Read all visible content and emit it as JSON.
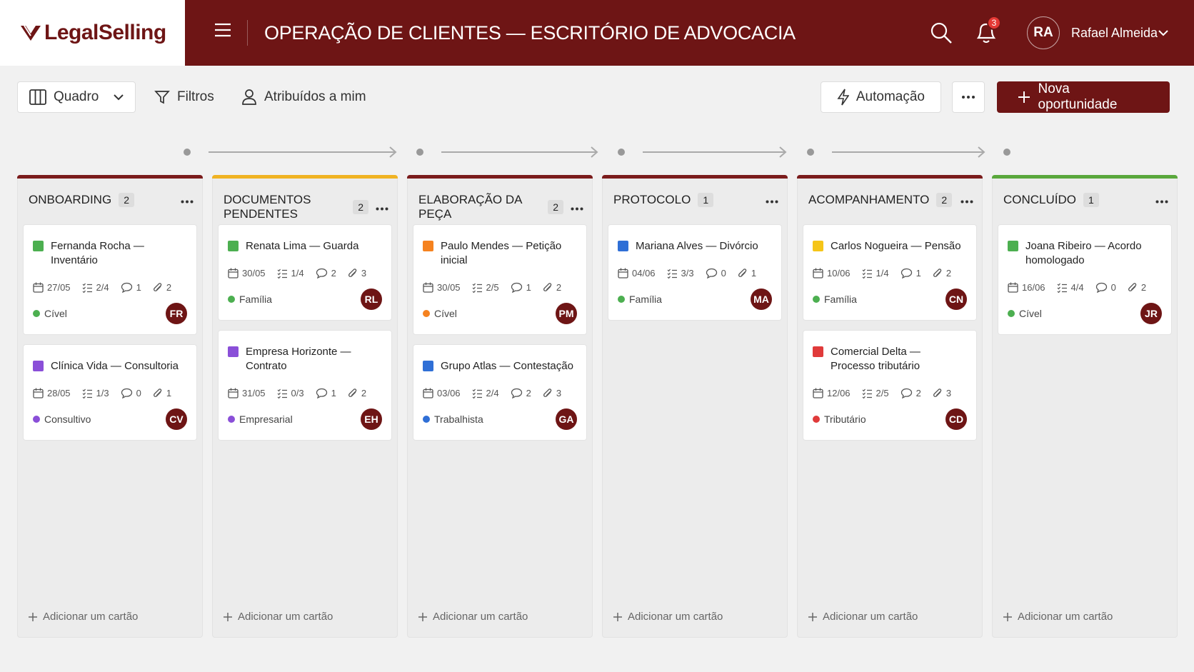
{
  "header": {
    "brand": "LegalSelling",
    "title": "OPERAÇÃO DE CLIENTES — ESCRITÓRIO DE ADVOCACIA",
    "notifications": 3,
    "user_initials": "RA",
    "user_name": "Rafael Almeida"
  },
  "toolbar": {
    "view": "Quadro",
    "filters": "Filtros",
    "assigned": "Atribuídos a mim",
    "automation": "Automação",
    "new_button": "Nova oportunidade"
  },
  "add_card": "Adicionar um cartão",
  "columns": [
    {
      "title": "ONBOARDING",
      "count": 2,
      "color": "#7b1c1c",
      "cards": [
        {
          "title": "Fernanda Rocha — Inventário",
          "color": "#4caf50",
          "date": "27/05",
          "checklist": "2/4",
          "comments": 1,
          "attachments": 2,
          "tag": "Cível",
          "tag_color": "#4caf50",
          "initials": "FR"
        },
        {
          "title": "Clínica Vida — Consultoria",
          "color": "#8a4fd8",
          "date": "28/05",
          "checklist": "1/3",
          "comments": 0,
          "attachments": 1,
          "tag": "Consultivo",
          "tag_color": "#8a4fd8",
          "initials": "CV"
        }
      ]
    },
    {
      "title": "DOCUMENTOS PENDENTES",
      "count": 2,
      "color": "#f0b323",
      "cards": [
        {
          "title": "Renata Lima — Guarda",
          "color": "#4caf50",
          "date": "30/05",
          "checklist": "1/4",
          "comments": 2,
          "attachments": 3,
          "tag": "Família",
          "tag_color": "#4caf50",
          "initials": "RL"
        },
        {
          "title": "Empresa Horizonte — Contrato",
          "color": "#8a4fd8",
          "date": "31/05",
          "checklist": "0/3",
          "comments": 1,
          "attachments": 2,
          "tag": "Empresarial",
          "tag_color": "#8a4fd8",
          "initials": "EH"
        }
      ]
    },
    {
      "title": "ELABORAÇÃO DA PEÇA",
      "count": 2,
      "color": "#7b1c1c",
      "cards": [
        {
          "title": "Paulo Mendes — Petição inicial",
          "color": "#f5821f",
          "date": "30/05",
          "checklist": "2/5",
          "comments": 1,
          "attachments": 2,
          "tag": "Cível",
          "tag_color": "#f5821f",
          "initials": "PM"
        },
        {
          "title": "Grupo Atlas — Contestação",
          "color": "#2f6fd6",
          "date": "03/06",
          "checklist": "2/4",
          "comments": 2,
          "attachments": 3,
          "tag": "Trabalhista",
          "tag_color": "#2f6fd6",
          "initials": "GA"
        }
      ]
    },
    {
      "title": "PROTOCOLO",
      "count": 1,
      "color": "#7b1c1c",
      "cards": [
        {
          "title": "Mariana Alves — Divórcio",
          "color": "#2f6fd6",
          "date": "04/06",
          "checklist": "3/3",
          "comments": 0,
          "attachments": 1,
          "tag": "Família",
          "tag_color": "#4caf50",
          "initials": "MA"
        }
      ]
    },
    {
      "title": "ACOMPANHAMENTO",
      "count": 2,
      "color": "#7b1c1c",
      "cards": [
        {
          "title": "Carlos Nogueira — Pensão",
          "color": "#f5c518",
          "date": "10/06",
          "checklist": "1/4",
          "comments": 1,
          "attachments": 2,
          "tag": "Família",
          "tag_color": "#4caf50",
          "initials": "CN"
        },
        {
          "title": "Comercial Delta — Processo tributário",
          "color": "#e03a3a",
          "date": "12/06",
          "checklist": "2/5",
          "comments": 2,
          "attachments": 3,
          "tag": "Tributário",
          "tag_color": "#e03a3a",
          "initials": "CD"
        }
      ]
    },
    {
      "title": "CONCLUÍDO",
      "count": 1,
      "color": "#5aa83c",
      "cards": [
        {
          "title": "Joana Ribeiro — Acordo homologado",
          "color": "#4caf50",
          "date": "16/06",
          "checklist": "4/4",
          "comments": 0,
          "attachments": 2,
          "tag": "Cível",
          "tag_color": "#4caf50",
          "initials": "JR"
        }
      ]
    }
  ]
}
